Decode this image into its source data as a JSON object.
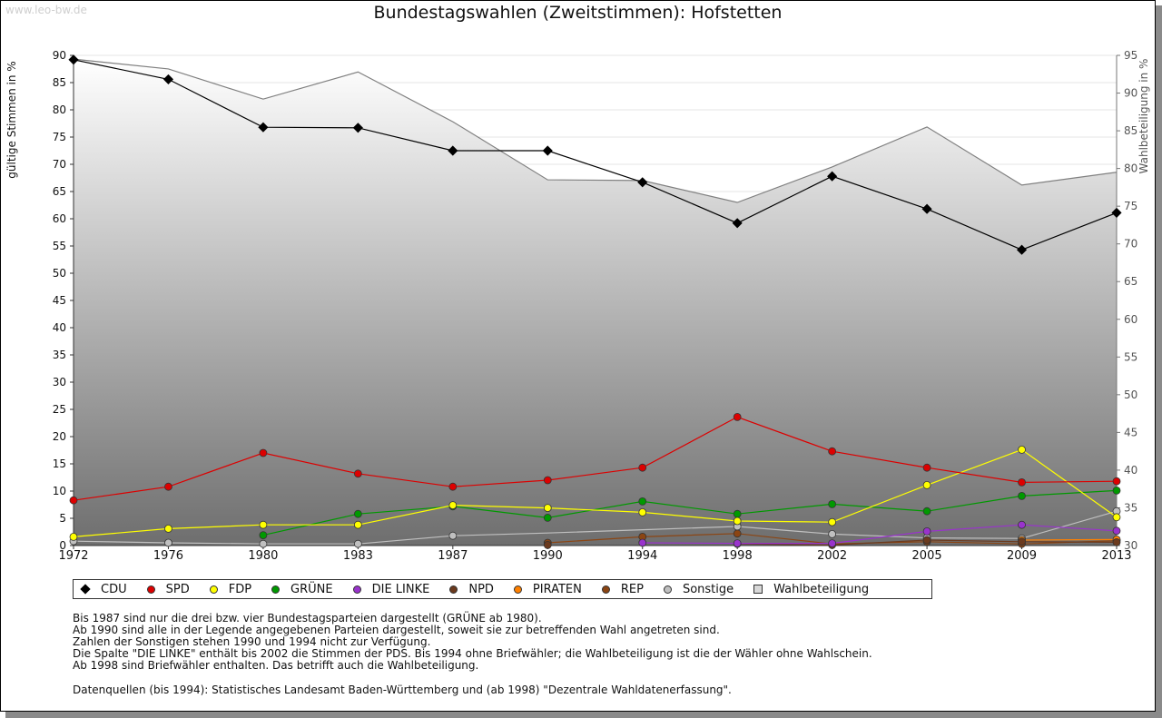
{
  "watermark": "www.leo-bw.de",
  "chart_data": {
    "type": "line",
    "title": "Bundestagswahlen (Zweitstimmen): Hofstetten",
    "ylabel": "gültige Stimmen in %",
    "y2label": "Wahlbeteiligung in %",
    "ylim": [
      0,
      90
    ],
    "y2lim": [
      30,
      95
    ],
    "yticks": [
      "0",
      "5",
      "10",
      "15",
      "20",
      "25",
      "30",
      "35",
      "40",
      "45",
      "50",
      "55",
      "60",
      "65",
      "70",
      "75",
      "80",
      "85",
      "90"
    ],
    "y2ticks": [
      "30",
      "35",
      "40",
      "45",
      "50",
      "55",
      "60",
      "65",
      "70",
      "75",
      "80",
      "85",
      "90",
      "95"
    ],
    "x": [
      "1972",
      "1976",
      "1980",
      "1983",
      "1987",
      "1990",
      "1994",
      "1998",
      "2002",
      "2005",
      "2009",
      "2013"
    ],
    "grid": true,
    "legend_position": "bottom",
    "series": [
      {
        "name": "Wahlbeteiligung",
        "axis": "right",
        "kind": "area",
        "color": "#808080",
        "values": [
          94.5,
          93.2,
          89.2,
          92.8,
          86.2,
          78.5,
          78.4,
          75.5,
          80.2,
          85.5,
          77.8,
          79.5
        ]
      },
      {
        "name": "Sonstige",
        "axis": "left",
        "color": "#c0c0c0",
        "markers": [
          true,
          true,
          true,
          true,
          true,
          false,
          false,
          true,
          true,
          true,
          true,
          true
        ],
        "values": [
          0.8,
          0.5,
          0.3,
          0.3,
          1.8,
          2.3,
          2.9,
          3.5,
          2.1,
          1.4,
          1.3,
          6.3
        ]
      },
      {
        "name": "REP",
        "axis": "left",
        "color": "#8b4513",
        "values": [
          null,
          null,
          null,
          null,
          null,
          0.5,
          1.6,
          2.2,
          0.3,
          0.7,
          0.3,
          0.9
        ]
      },
      {
        "name": "PIRATEN",
        "axis": "left",
        "color": "#ff8000",
        "values": [
          null,
          null,
          null,
          null,
          null,
          null,
          null,
          null,
          null,
          null,
          1.0,
          1.1
        ]
      },
      {
        "name": "NPD",
        "axis": "left",
        "color": "#6b3a1e",
        "values": [
          null,
          null,
          null,
          null,
          null,
          0.1,
          null,
          0.3,
          0.1,
          1.0,
          0.7,
          0.6
        ]
      },
      {
        "name": "DIE LINKE",
        "axis": "left",
        "color": "#9933cc",
        "values": [
          null,
          null,
          null,
          null,
          null,
          null,
          0.5,
          0.4,
          0.4,
          2.6,
          3.8,
          2.7
        ]
      },
      {
        "name": "GRÜNE",
        "axis": "left",
        "color": "#009900",
        "values": [
          null,
          null,
          1.9,
          5.8,
          7.2,
          5.1,
          8.1,
          5.8,
          7.6,
          6.3,
          9.1,
          10.1
        ]
      },
      {
        "name": "FDP",
        "axis": "left",
        "color": "#ffff00",
        "values": [
          1.6,
          3.1,
          3.8,
          3.8,
          7.4,
          6.9,
          6.1,
          4.5,
          4.3,
          11.1,
          17.6,
          5.2
        ]
      },
      {
        "name": "SPD",
        "axis": "left",
        "color": "#dd0000",
        "values": [
          8.3,
          10.8,
          17.0,
          13.2,
          10.8,
          12.0,
          14.3,
          23.6,
          17.3,
          14.3,
          11.6,
          11.8
        ]
      },
      {
        "name": "CDU",
        "axis": "left",
        "color": "#000000",
        "marker": "diamond",
        "values": [
          89.2,
          85.6,
          76.8,
          76.7,
          72.5,
          72.5,
          66.7,
          59.2,
          67.8,
          61.8,
          54.3,
          61.1
        ]
      }
    ]
  },
  "legend": [
    {
      "label": "CDU",
      "color": "#000000",
      "shape": "diamond"
    },
    {
      "label": "SPD",
      "color": "#dd0000",
      "shape": "dot"
    },
    {
      "label": "FDP",
      "color": "#ffff00",
      "shape": "dot"
    },
    {
      "label": "GRÜNE",
      "color": "#009900",
      "shape": "dot"
    },
    {
      "label": "DIE LINKE",
      "color": "#9933cc",
      "shape": "dot"
    },
    {
      "label": "NPD",
      "color": "#6b3a1e",
      "shape": "dot"
    },
    {
      "label": "PIRATEN",
      "color": "#ff8000",
      "shape": "dot"
    },
    {
      "label": "REP",
      "color": "#8b4513",
      "shape": "dot"
    },
    {
      "label": "Sonstige",
      "color": "#c0c0c0",
      "shape": "dot"
    },
    {
      "label": "Wahlbeteiligung",
      "color": "#d8d8d8",
      "shape": "square"
    }
  ],
  "notes": [
    "Bis 1987 sind nur die drei bzw. vier Bundestagsparteien dargestellt (GRÜNE ab 1980).",
    "Ab 1990 sind alle in der Legende angegebenen Parteien dargestellt, soweit sie zur betreffenden Wahl angetreten sind.",
    "Zahlen der Sonstigen stehen 1990 und 1994 nicht zur Verfügung.",
    "Die Spalte \"DIE LINKE\" enthält bis 2002 die Stimmen der PDS. Bis 1994 ohne Briefwähler; die Wahlbeteiligung ist die der Wähler ohne Wahlschein.",
    "Ab 1998 sind Briefwähler enthalten. Das betrifft auch die Wahlbeteiligung."
  ],
  "source": "Datenquellen (bis 1994): Statistisches Landesamt Baden-Württemberg und (ab 1998) \"Dezentrale Wahldatenerfassung\"."
}
